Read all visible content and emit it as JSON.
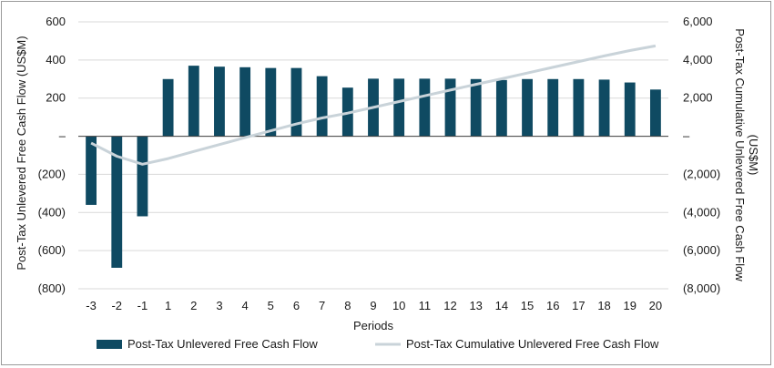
{
  "chart_data": {
    "type": "bar",
    "categories": [
      "-3",
      "-2",
      "-1",
      "1",
      "2",
      "3",
      "4",
      "5",
      "6",
      "7",
      "8",
      "9",
      "10",
      "11",
      "12",
      "13",
      "14",
      "15",
      "16",
      "17",
      "18",
      "19",
      "20"
    ],
    "series": [
      {
        "name": "Post-Tax Unlevered Free Cash Flow",
        "type": "bar",
        "axis": "left",
        "color": "#0f4a62",
        "values": [
          -360,
          -690,
          -420,
          300,
          370,
          365,
          362,
          358,
          358,
          315,
          255,
          302,
          302,
          302,
          302,
          300,
          295,
          300,
          300,
          300,
          297,
          282,
          245
        ]
      },
      {
        "name": "Post-Tax Cumulative Unlevered Free Cash Flow",
        "type": "line",
        "axis": "right",
        "color": "#c9d3d9",
        "values": [
          -360,
          -1050,
          -1470,
          -1170,
          -800,
          -435,
          -73,
          285,
          643,
          958,
          1213,
          1515,
          1817,
          2119,
          2421,
          2721,
          3016,
          3316,
          3616,
          3916,
          4213,
          4495,
          4740
        ]
      }
    ],
    "xlabel": "Periods",
    "ylabel": "Post-Tax Unlevered Free Cash Flow (US$M)",
    "y2label_line1": "Post-Tax Cumulative Unlevered Free Cash Flow",
    "y2label_line2": "(US$M)",
    "ylim": [
      -800,
      600
    ],
    "y2lim": [
      -8000,
      6000
    ],
    "yticks": [
      "600",
      "400",
      "200",
      "–",
      "(200)",
      "(400)",
      "(600)",
      "(800)"
    ],
    "y2ticks": [
      "6,000",
      "4,000",
      "2,000",
      "–",
      "(2,000)",
      "(4,000)",
      "(6,000)",
      "(8,000)"
    ],
    "legend": [
      "Post-Tax Unlevered Free Cash Flow",
      "Post-Tax Cumulative Unlevered Free Cash Flow"
    ],
    "legend_position": "bottom",
    "grid": true
  }
}
